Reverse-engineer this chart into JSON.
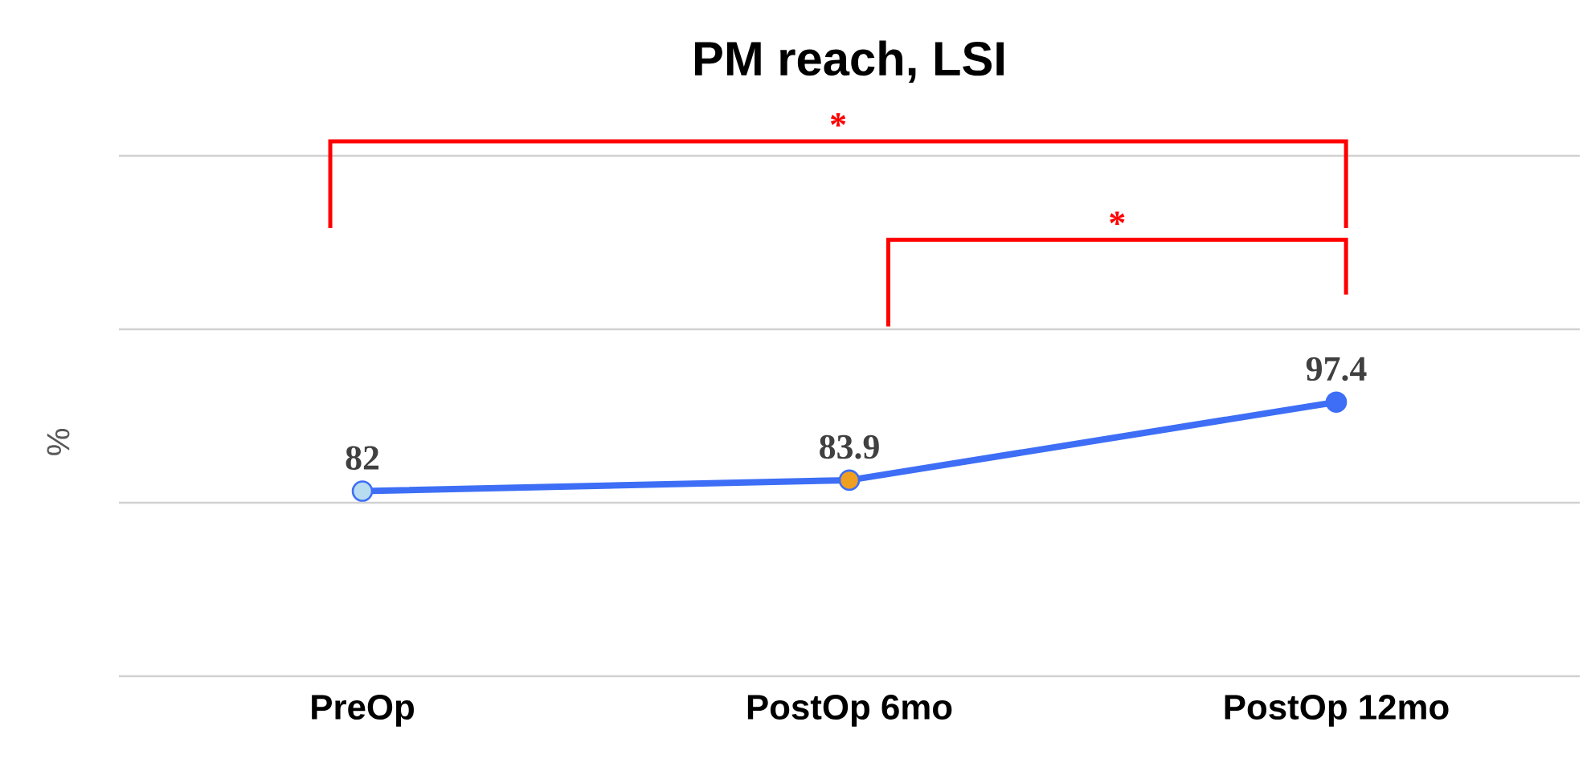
{
  "chart_data": {
    "type": "line",
    "title": "PM reach, LSI",
    "ylabel": "%",
    "categories": [
      "PreOp",
      "PostOp 6mo",
      "PostOp 12mo"
    ],
    "series": [
      {
        "color": "#3d6ef5",
        "values": [
          82,
          83.9,
          97.4
        ],
        "colors": [
          "#b8dcf0",
          "#f0a020",
          "#3d6ef5"
        ]
      }
    ],
    "yticks": [
      {
        "value": 50,
        "label": null
      },
      {
        "value": 80,
        "label": null
      },
      {
        "value": 110,
        "label": null
      },
      {
        "value": 140,
        "label": null
      }
    ],
    "ylim": [
      50,
      140
    ],
    "grid": "y",
    "tick_labels": "x",
    "marker": "circle",
    "line_style": "solid",
    "data_labels": true,
    "annotations": [
      "*",
      "*"
    ]
  }
}
